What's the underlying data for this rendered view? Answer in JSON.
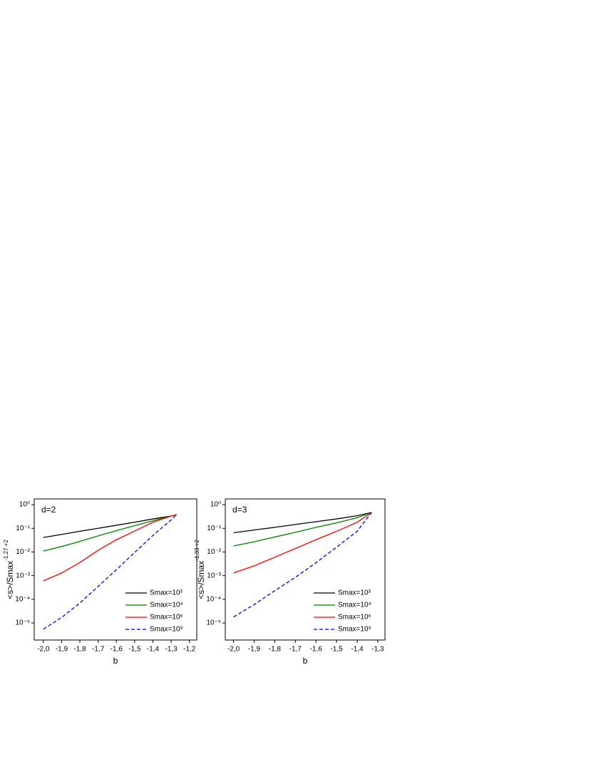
{
  "chart_data": [
    {
      "type": "line",
      "annotation": "d=2",
      "xlabel": "b",
      "ylabel": {
        "text": "<s>/Smax",
        "sup": "-1,27 +2"
      },
      "x": [
        -2.0,
        -1.9,
        -1.8,
        -1.7,
        -1.6,
        -1.5,
        -1.4,
        -1.3,
        -1.27
      ],
      "series": [
        {
          "name": "Smax=10³",
          "color": "#000000",
          "dash": "solid",
          "values": [
            0.041,
            0.055,
            0.075,
            0.1,
            0.135,
            0.18,
            0.25,
            0.33,
            0.38
          ]
        },
        {
          "name": "Smax=10⁴",
          "color": "#008000",
          "dash": "solid",
          "values": [
            0.011,
            0.017,
            0.028,
            0.048,
            0.08,
            0.13,
            0.21,
            0.33,
            0.38
          ]
        },
        {
          "name": "Smax=10⁶",
          "color": "#ff0000",
          "dash": "solid",
          "values": [
            0.0006,
            0.0013,
            0.0036,
            0.0118,
            0.033,
            0.077,
            0.18,
            0.33,
            0.38
          ]
        },
        {
          "name": "Smax=10⁹",
          "color": "#0000ff",
          "dash": "dashed",
          "values": [
            5.5e-06,
            1.7e-05,
            7e-05,
            0.00035,
            0.0018,
            0.0096,
            0.05,
            0.23,
            0.38
          ]
        }
      ],
      "xlim": [
        -2.05,
        -1.16
      ],
      "ylim": [
        1.9e-06,
        1.75
      ],
      "log_y": true,
      "legend": "lower right",
      "xticks": [
        {
          "value": -2.0,
          "label": "-2,0"
        },
        {
          "value": -1.9,
          "label": "-1,9"
        },
        {
          "value": -1.8,
          "label": "-1,8"
        },
        {
          "value": -1.7,
          "label": "-1,7"
        },
        {
          "value": -1.6,
          "label": "-1,6"
        },
        {
          "value": -1.5,
          "label": "-1,5"
        },
        {
          "value": -1.4,
          "label": "-1,4"
        },
        {
          "value": -1.3,
          "label": "-1,3"
        },
        {
          "value": -1.2,
          "label": "-1,2"
        }
      ],
      "yticks": [
        {
          "value": 1,
          "label": "10⁰"
        },
        {
          "value": 0.1,
          "label": "10⁻¹"
        },
        {
          "value": 0.01,
          "label": "10⁻²"
        },
        {
          "value": 0.001,
          "label": "10⁻³"
        },
        {
          "value": 0.0001,
          "label": "10⁻⁴"
        },
        {
          "value": 1e-05,
          "label": "10⁻⁵"
        }
      ]
    },
    {
      "type": "line",
      "annotation": "d=3",
      "xlabel": "b",
      "ylabel": {
        "text": "<s>/Smax",
        "sup": "-1,33 +2"
      },
      "x": [
        -2.0,
        -1.9,
        -1.8,
        -1.7,
        -1.6,
        -1.5,
        -1.4,
        -1.33
      ],
      "series": [
        {
          "name": "Smax=10³",
          "color": "#000000",
          "dash": "solid",
          "values": [
            0.065,
            0.085,
            0.11,
            0.145,
            0.19,
            0.25,
            0.34,
            0.47
          ]
        },
        {
          "name": "Smax=10⁴",
          "color": "#008000",
          "dash": "solid",
          "values": [
            0.018,
            0.027,
            0.043,
            0.068,
            0.11,
            0.17,
            0.28,
            0.47
          ]
        },
        {
          "name": "Smax=10⁶",
          "color": "#ff0000",
          "dash": "solid",
          "values": [
            0.0013,
            0.0026,
            0.006,
            0.014,
            0.033,
            0.075,
            0.18,
            0.47
          ]
        },
        {
          "name": "Smax=10⁹",
          "color": "#0000ff",
          "dash": "dashed",
          "values": [
            1.8e-05,
            6e-05,
            0.00023,
            0.00085,
            0.0035,
            0.016,
            0.075,
            0.47
          ]
        }
      ],
      "xlim": [
        -2.04,
        -1.265
      ],
      "ylim": [
        1.9e-06,
        1.75
      ],
      "log_y": true,
      "legend": "lower right",
      "xticks": [
        {
          "value": -2.0,
          "label": "-2,0"
        },
        {
          "value": -1.9,
          "label": "-1,9"
        },
        {
          "value": -1.8,
          "label": "-1,8"
        },
        {
          "value": -1.7,
          "label": "-1,7"
        },
        {
          "value": -1.6,
          "label": "-1,6"
        },
        {
          "value": -1.5,
          "label": "-1,5"
        },
        {
          "value": -1.4,
          "label": "-1,4"
        },
        {
          "value": -1.3,
          "label": "-1,3"
        }
      ],
      "yticks": [
        {
          "value": 1,
          "label": "10⁰"
        },
        {
          "value": 0.1,
          "label": "10⁻¹"
        },
        {
          "value": 0.01,
          "label": "10⁻²"
        },
        {
          "value": 0.001,
          "label": "10⁻³"
        },
        {
          "value": 0.0001,
          "label": "10⁻⁴"
        },
        {
          "value": 1e-05,
          "label": "10⁻⁵"
        }
      ]
    }
  ]
}
